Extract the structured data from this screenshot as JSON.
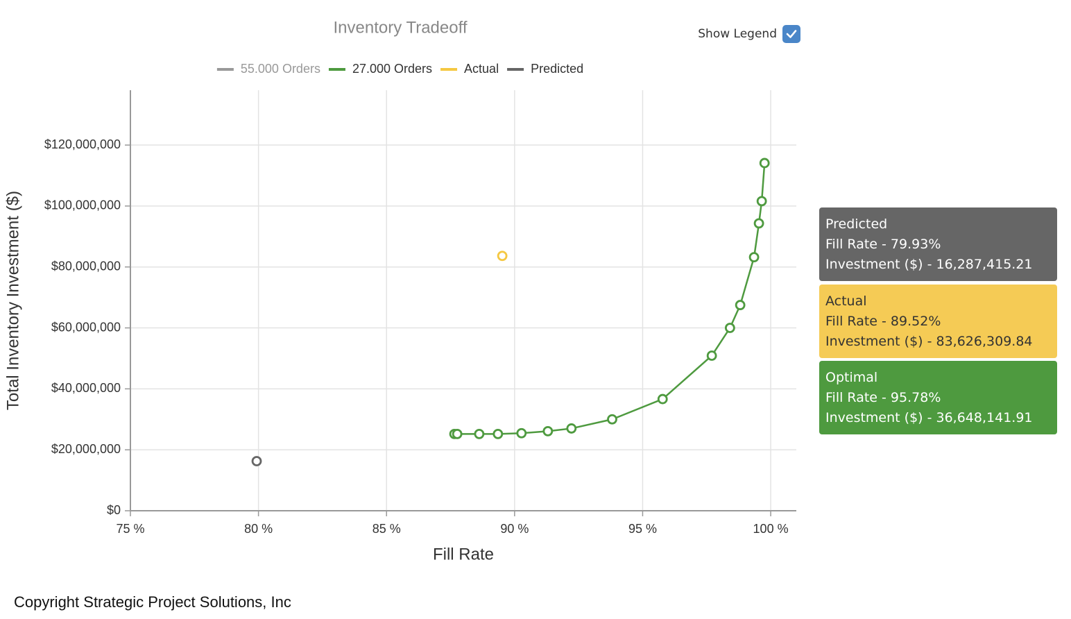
{
  "chart_data": {
    "type": "scatter",
    "title": "Inventory Tradeoff",
    "x_label": "Fill Rate",
    "y_label": "Total Inventory Investment ($)",
    "xlim": [
      75,
      101
    ],
    "ylim": [
      0,
      138000000
    ],
    "xticks": [
      {
        "value": 75,
        "label": "75 %"
      },
      {
        "value": 80,
        "label": "80 %"
      },
      {
        "value": 85,
        "label": "85 %"
      },
      {
        "value": 90,
        "label": "90 %"
      },
      {
        "value": 95,
        "label": "95 %"
      },
      {
        "value": 100,
        "label": "100 %"
      }
    ],
    "yticks": [
      {
        "value": 0,
        "label": "$0"
      },
      {
        "value": 20000000,
        "label": "$20,000,000"
      },
      {
        "value": 40000000,
        "label": "$40,000,000"
      },
      {
        "value": 60000000,
        "label": "$60,000,000"
      },
      {
        "value": 80000000,
        "label": "$80,000,000"
      },
      {
        "value": 100000000,
        "label": "$100,000,000"
      },
      {
        "value": 120000000,
        "label": "$120,000,000"
      }
    ],
    "grid": true,
    "series": [
      {
        "name": "55.000 Orders",
        "color": "#999999",
        "hidden": true,
        "mode": "lines+markers",
        "x": [],
        "values": []
      },
      {
        "name": "27.000 Orders",
        "color": "#4e9a3f",
        "mode": "lines+markers",
        "x": [
          87.65,
          87.76,
          88.62,
          89.35,
          90.27,
          91.3,
          92.22,
          93.81,
          95.78,
          97.7,
          98.41,
          98.81,
          99.35,
          99.54,
          99.65,
          99.76
        ],
        "values": [
          25200000,
          25200000,
          25200000,
          25200000,
          25450000,
          26100000,
          27000000,
          30000000,
          36648141.91,
          50900000,
          60000000,
          67500000,
          83200000,
          94300000,
          101600000,
          114100000
        ]
      },
      {
        "name": "Actual",
        "color": "#f5c842",
        "mode": "markers",
        "x": [
          89.52
        ],
        "values": [
          83626309.84
        ]
      },
      {
        "name": "Predicted",
        "color": "#666666",
        "mode": "markers",
        "x": [
          79.93
        ],
        "values": [
          16287415.21
        ]
      }
    ]
  },
  "legend_toggle": {
    "label": "Show Legend",
    "checked": true
  },
  "info_panels": [
    {
      "title": "Predicted",
      "lines": [
        "Fill Rate - 79.93%",
        "Investment ($) - 16,287,415.21"
      ],
      "color": "#666666",
      "text_color": "#ffffff"
    },
    {
      "title": "Actual",
      "lines": [
        "Fill Rate - 89.52%",
        "Investment ($) - 83,626,309.84"
      ],
      "color": "#f5cb55",
      "text_color": "#333333"
    },
    {
      "title": "Optimal",
      "lines": [
        "Fill Rate - 95.78%",
        "Investment ($) - 36,648,141.91"
      ],
      "color": "#4e9a3f",
      "text_color": "#ffffff"
    }
  ],
  "footer": "Copyright Strategic Project Solutions, Inc"
}
